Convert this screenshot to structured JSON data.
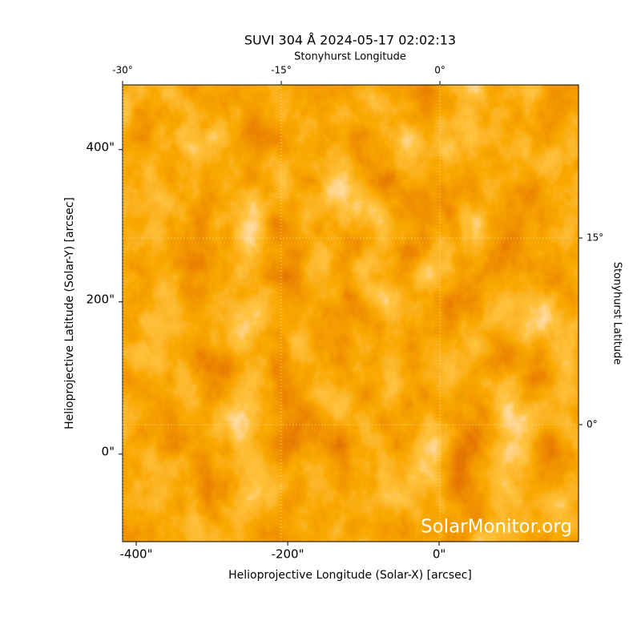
{
  "chart_data": {
    "type": "image",
    "title": "SUVI 304 Å 2024-05-17 02:02:13",
    "x_label": "Helioprojective Longitude (Solar-X) [arcsec]",
    "y_label": "Helioprojective Latitude (Solar-Y) [arcsec]",
    "x2_label": "Stonyhurst Longitude",
    "y2_label": "Stonyhurst Latitude",
    "watermark": "SolarMonitor.org",
    "xlim": [
      -418,
      184
    ],
    "ylim": [
      -115,
      485
    ],
    "xticks": [
      {
        "value": -400,
        "label": "-400\""
      },
      {
        "value": -200,
        "label": "-200\""
      },
      {
        "value": 0,
        "label": "0\""
      }
    ],
    "yticks": [
      {
        "value": 0,
        "label": "0\""
      },
      {
        "value": 200,
        "label": "200\""
      },
      {
        "value": 400,
        "label": "400\""
      }
    ],
    "x2lim": [
      -30,
      13.1
    ],
    "x2ticks": [
      {
        "value": -30,
        "label": "-30°"
      },
      {
        "value": -15,
        "label": "-15°"
      },
      {
        "value": 0,
        "label": "0°"
      }
    ],
    "y2lim": [
      -9.4,
      27.3
    ],
    "y2ticks": [
      {
        "value": 0,
        "label": "0°"
      },
      {
        "value": 15,
        "label": "15°"
      }
    ],
    "grid": true
  }
}
